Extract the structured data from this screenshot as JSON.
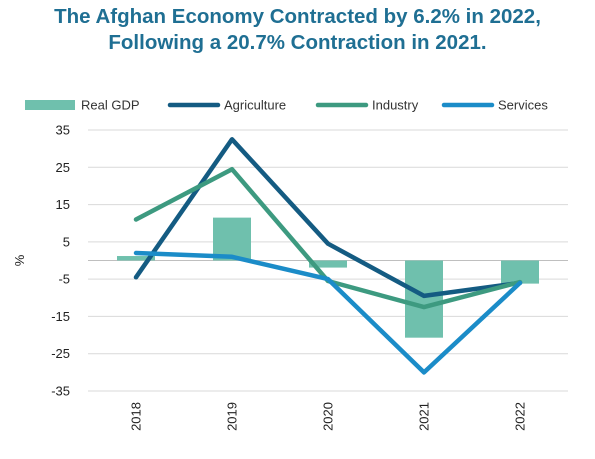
{
  "title_lines": [
    "The Afghan Economy Contracted by 6.2% in 2022,",
    "Following a 20.7% Contraction in 2021."
  ],
  "chart_data": {
    "type": "bar",
    "categories": [
      "2018",
      "2019",
      "2020",
      "2021",
      "2022"
    ],
    "ylabel": "%",
    "xlabel": "",
    "ylim": [
      -35,
      35
    ],
    "yticks": [
      35,
      25,
      15,
      5,
      -5,
      -15,
      -25,
      -35
    ],
    "grid": "horizontal",
    "legend_position": "top",
    "series": [
      {
        "name": "Real GDP",
        "kind": "bar",
        "color": "#6fc0ad",
        "values": [
          1.2,
          11.5,
          -1.9,
          -20.7,
          -6.2
        ]
      },
      {
        "name": "Agriculture",
        "kind": "line",
        "color": "#145b82",
        "values": [
          -4.5,
          32.5,
          4.5,
          -9.5,
          -6.0
        ]
      },
      {
        "name": "Industry",
        "kind": "line",
        "color": "#3d9a80",
        "values": [
          11.0,
          24.5,
          -5.5,
          -12.5,
          -5.8
        ]
      },
      {
        "name": "Services",
        "kind": "line",
        "color": "#1b8cc8",
        "values": [
          2.0,
          1.0,
          -5.0,
          -30.0,
          -6.0
        ]
      }
    ]
  }
}
